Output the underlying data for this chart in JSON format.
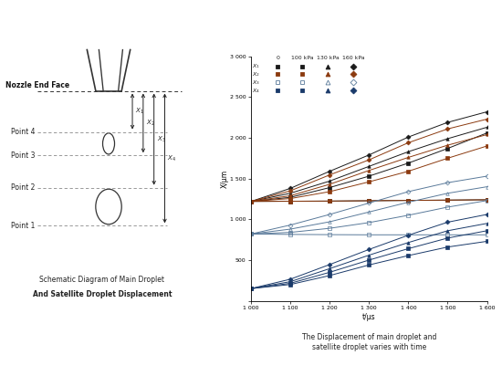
{
  "left_title_line1": "Schematic Diagram of Main Droplet",
  "left_title_line2": "And Satellite Droplet Displacement",
  "right_title": "The Displacement of main droplet and\nsatellite droplet varies with time",
  "xlabel": "t/μs",
  "ylabel": "X/μm",
  "xlim": [
    1000,
    1600
  ],
  "ylim": [
    0,
    3000
  ],
  "xticks": [
    1000,
    1100,
    1200,
    1300,
    1400,
    1500,
    1600
  ],
  "yticks": [
    0,
    500,
    1000,
    1500,
    2000,
    2500,
    3000
  ],
  "xtick_labels": [
    "1 000",
    "1 100",
    "1 200",
    "1 300",
    "1 400",
    "1 500",
    "1 600"
  ],
  "ytick_labels": [
    "",
    "500",
    "1 000",
    "1 500",
    "2 000",
    "2 500",
    "3 000"
  ],
  "t": [
    1000,
    1100,
    1200,
    1300,
    1400,
    1500,
    1600
  ],
  "series": {
    "X1_0": [
      1220,
      1222,
      1224,
      1228,
      1232,
      1236,
      1240
    ],
    "X1_100": [
      1220,
      1270,
      1390,
      1530,
      1690,
      1870,
      2060
    ],
    "X1_130": [
      1220,
      1320,
      1470,
      1650,
      1830,
      1990,
      2130
    ],
    "X1_160": [
      1220,
      1380,
      1590,
      1790,
      2010,
      2190,
      2320
    ],
    "X2_0": [
      1220,
      1222,
      1224,
      1228,
      1232,
      1236,
      1240
    ],
    "X2_100": [
      1220,
      1255,
      1340,
      1460,
      1590,
      1750,
      1900
    ],
    "X2_130": [
      1220,
      1290,
      1430,
      1600,
      1760,
      1910,
      2040
    ],
    "X2_160": [
      1220,
      1350,
      1545,
      1730,
      1940,
      2110,
      2230
    ],
    "X3_0": [
      820,
      815,
      812,
      810,
      810,
      810,
      810
    ],
    "X3_100": [
      820,
      840,
      890,
      960,
      1050,
      1150,
      1230
    ],
    "X3_130": [
      820,
      880,
      970,
      1090,
      1210,
      1320,
      1400
    ],
    "X3_160": [
      820,
      930,
      1060,
      1200,
      1340,
      1450,
      1530
    ],
    "X4_0": [
      150,
      200,
      310,
      440,
      555,
      660,
      730
    ],
    "X4_100": [
      150,
      215,
      350,
      500,
      640,
      770,
      860
    ],
    "X4_130": [
      150,
      235,
      395,
      560,
      715,
      860,
      950
    ],
    "X4_160": [
      150,
      265,
      445,
      630,
      805,
      965,
      1060
    ]
  },
  "colors": {
    "X1": "#1a1a1a",
    "X2": "#8B3A0F",
    "X3": "#5a7a9a",
    "X4": "#1a3a6a"
  },
  "bg_color": "#ffffff"
}
